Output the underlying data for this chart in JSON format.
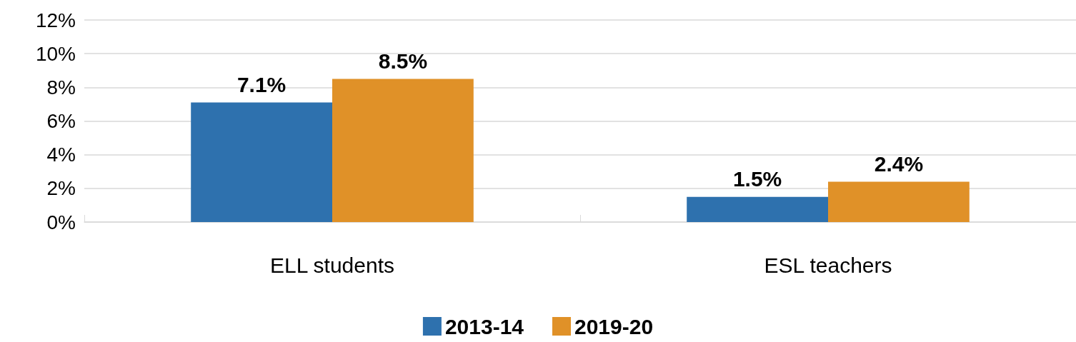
{
  "chart_data": {
    "type": "bar",
    "categories": [
      "ELL students",
      "ESL teachers"
    ],
    "series": [
      {
        "name": "2013-14",
        "color": "#2e71ae",
        "values": [
          7.1,
          1.5
        ],
        "value_labels": [
          "7.1%",
          "1.5%"
        ]
      },
      {
        "name": "2019-20",
        "color": "#e09128",
        "values": [
          8.5,
          2.4
        ],
        "value_labels": [
          "8.5%",
          "2.4%"
        ]
      }
    ],
    "ylim": [
      0,
      12
    ],
    "yticks": [
      {
        "value": 0,
        "label": "0%"
      },
      {
        "value": 2,
        "label": "2%"
      },
      {
        "value": 4,
        "label": "4%"
      },
      {
        "value": 6,
        "label": "6%"
      },
      {
        "value": 8,
        "label": "8%"
      },
      {
        "value": 10,
        "label": "10%"
      },
      {
        "value": 12,
        "label": "12%"
      }
    ],
    "grid": "y",
    "legend": "bottom"
  }
}
